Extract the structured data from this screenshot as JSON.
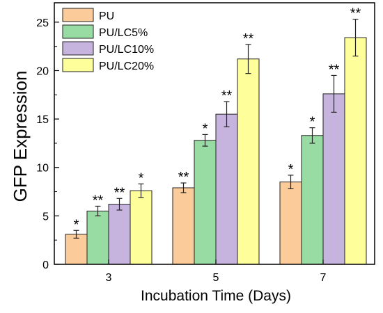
{
  "chart_data": {
    "type": "bar",
    "title": "",
    "xlabel": "Incubation Time (Days)",
    "ylabel": "GFP Expression",
    "categories": [
      "3",
      "5",
      "7"
    ],
    "ylim": [
      0,
      27
    ],
    "yticks": [
      0,
      5,
      10,
      15,
      20,
      25
    ],
    "legend_position": "top-left",
    "grid": false,
    "series": [
      {
        "name": "PU",
        "color": "#FBCB9A",
        "values": [
          3.1,
          7.9,
          8.5
        ],
        "errors": [
          0.4,
          0.5,
          0.7
        ],
        "significance": [
          "*",
          "**",
          "*"
        ]
      },
      {
        "name": "PU/LC5%",
        "color": "#98DBA3",
        "values": [
          5.5,
          12.8,
          13.3
        ],
        "errors": [
          0.5,
          0.6,
          0.8
        ],
        "significance": [
          "**",
          "*",
          "*"
        ]
      },
      {
        "name": "PU/LC10%",
        "color": "#C7B4DE",
        "values": [
          6.2,
          15.5,
          17.6
        ],
        "errors": [
          0.6,
          1.3,
          1.9
        ],
        "significance": [
          "**",
          "**",
          "**"
        ]
      },
      {
        "name": "PU/LC20%",
        "color": "#FEFE9B",
        "values": [
          7.6,
          21.2,
          23.4
        ],
        "errors": [
          0.7,
          1.5,
          1.9
        ],
        "significance": [
          "*",
          "**",
          "**"
        ]
      }
    ]
  }
}
